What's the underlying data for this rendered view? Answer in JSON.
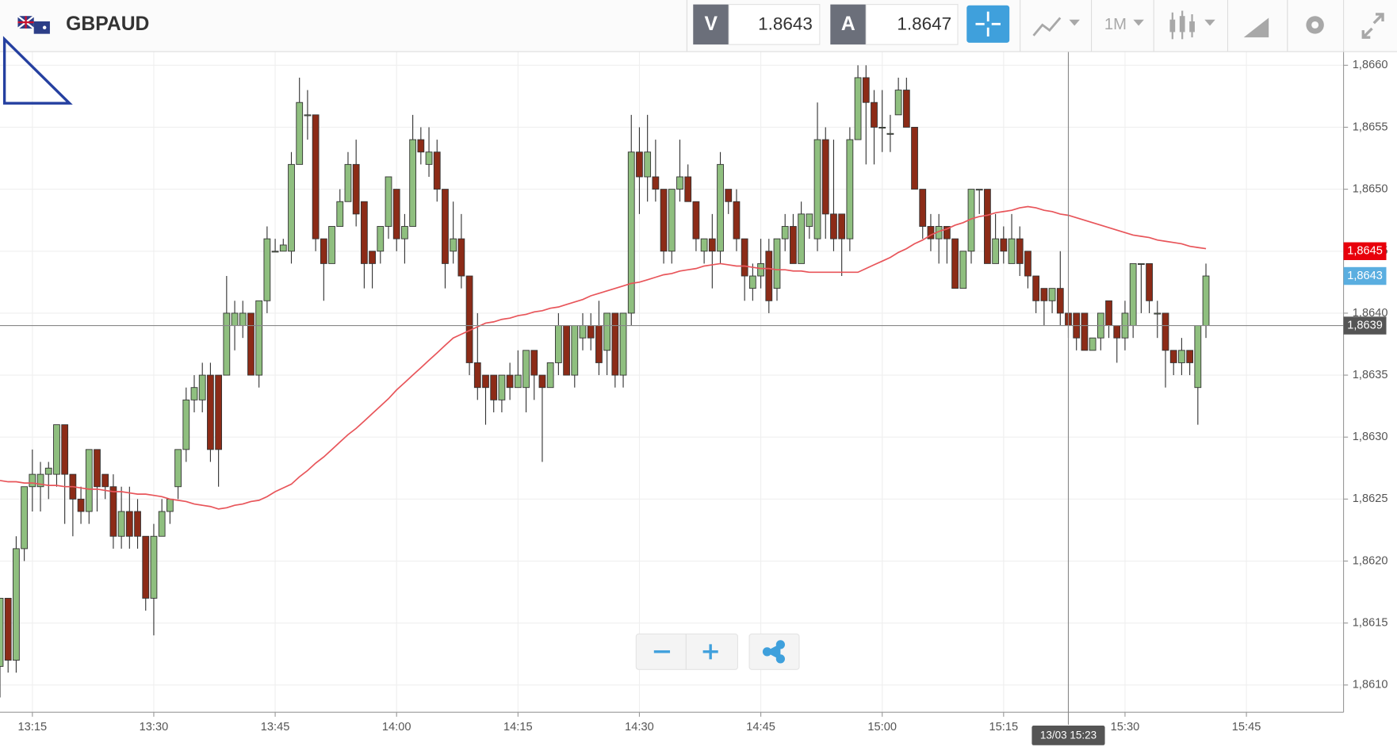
{
  "header": {
    "symbol": "GBPAUD",
    "sell_label": "V",
    "sell_price": 1.8643,
    "buy_label": "A",
    "buy_price": 1.8647,
    "timeframe": "1M"
  },
  "chart_data": {
    "type": "candlestick",
    "up_color": "#8fbf7f",
    "down_color": "#8c2b17",
    "grid": true,
    "xlim": [
      "13:11",
      "15:57"
    ],
    "xticks": [
      "13:15",
      "13:30",
      "13:45",
      "14:00",
      "14:15",
      "14:30",
      "14:45",
      "15:00",
      "15:15",
      "15:30",
      "15:45"
    ],
    "ylim": [
      1.86078,
      1.86611
    ],
    "yticks": [
      {
        "value": 1.861,
        "label": "1,8610"
      },
      {
        "value": 1.8615,
        "label": "1,8615"
      },
      {
        "value": 1.862,
        "label": "1,8620"
      },
      {
        "value": 1.8625,
        "label": "1,8625"
      },
      {
        "value": 1.863,
        "label": "1,8630"
      },
      {
        "value": 1.8635,
        "label": "1,8635"
      },
      {
        "value": 1.864,
        "label": "1,8640"
      },
      {
        "value": 1.8645,
        "label": "1,8645"
      },
      {
        "value": 1.865,
        "label": "1,8650"
      },
      {
        "value": 1.8655,
        "label": "1,8655"
      },
      {
        "value": 1.866,
        "label": "1,8660"
      }
    ],
    "categories": [
      "13:11",
      "13:12",
      "13:13",
      "13:14",
      "13:15",
      "13:16",
      "13:17",
      "13:18",
      "13:19",
      "13:20",
      "13:21",
      "13:22",
      "13:23",
      "13:24",
      "13:25",
      "13:26",
      "13:27",
      "13:28",
      "13:29",
      "13:30",
      "13:31",
      "13:32",
      "13:33",
      "13:34",
      "13:35",
      "13:36",
      "13:37",
      "13:38",
      "13:39",
      "13:40",
      "13:41",
      "13:42",
      "13:43",
      "13:44",
      "13:45",
      "13:46",
      "13:47",
      "13:48",
      "13:49",
      "13:50",
      "13:51",
      "13:52",
      "13:53",
      "13:54",
      "13:55",
      "13:56",
      "13:57",
      "13:58",
      "13:59",
      "14:00",
      "14:01",
      "14:02",
      "14:03",
      "14:04",
      "14:05",
      "14:06",
      "14:07",
      "14:08",
      "14:09",
      "14:10",
      "14:11",
      "14:12",
      "14:13",
      "14:14",
      "14:15",
      "14:16",
      "14:17",
      "14:18",
      "14:19",
      "14:20",
      "14:21",
      "14:22",
      "14:23",
      "14:24",
      "14:25",
      "14:26",
      "14:27",
      "14:28",
      "14:29",
      "14:30",
      "14:31",
      "14:32",
      "14:33",
      "14:34",
      "14:35",
      "14:36",
      "14:37",
      "14:38",
      "14:39",
      "14:40",
      "14:41",
      "14:42",
      "14:43",
      "14:44",
      "14:45",
      "14:46",
      "14:47",
      "14:48",
      "14:49",
      "14:50",
      "14:51",
      "14:52",
      "14:53",
      "14:54",
      "14:55",
      "14:56",
      "14:57",
      "14:58",
      "14:59",
      "15:00",
      "15:01",
      "15:02",
      "15:03",
      "15:04",
      "15:05",
      "15:06",
      "15:07",
      "15:08",
      "15:09",
      "15:10",
      "15:11",
      "15:12",
      "15:13",
      "15:14",
      "15:15",
      "15:16",
      "15:17",
      "15:18",
      "15:19",
      "15:20",
      "15:21",
      "15:22",
      "15:23",
      "15:24",
      "15:25",
      "15:26",
      "15:27",
      "15:28",
      "15:29",
      "15:30",
      "15:31",
      "15:32",
      "15:33",
      "15:34",
      "15:35",
      "15:36",
      "15:37",
      "15:38",
      "15:39",
      "15:40"
    ],
    "ohlc": [
      [
        1.86115,
        1.8617,
        1.8609,
        1.8617
      ],
      [
        1.8617,
        1.8617,
        1.8611,
        1.8612
      ],
      [
        1.8612,
        1.8622,
        1.8611,
        1.8621
      ],
      [
        1.8621,
        1.8626,
        1.862,
        1.8626
      ],
      [
        1.8626,
        1.8629,
        1.8624,
        1.8627
      ],
      [
        1.8626,
        1.8628,
        1.8624,
        1.8627
      ],
      [
        1.8627,
        1.8628,
        1.8625,
        1.86275
      ],
      [
        1.8627,
        1.8631,
        1.8626,
        1.8631
      ],
      [
        1.8631,
        1.8631,
        1.8623,
        1.8627
      ],
      [
        1.8627,
        1.8627,
        1.8622,
        1.8625
      ],
      [
        1.8625,
        1.8626,
        1.8623,
        1.8624
      ],
      [
        1.8624,
        1.8629,
        1.8623,
        1.8629
      ],
      [
        1.8629,
        1.8629,
        1.8624,
        1.8626
      ],
      [
        1.8627,
        1.8627,
        1.8625,
        1.8626
      ],
      [
        1.8626,
        1.8627,
        1.8621,
        1.8622
      ],
      [
        1.8622,
        1.8626,
        1.8621,
        1.8624
      ],
      [
        1.8624,
        1.8626,
        1.8621,
        1.8622
      ],
      [
        1.8624,
        1.8625,
        1.8621,
        1.8622
      ],
      [
        1.8622,
        1.8622,
        1.8616,
        1.8617
      ],
      [
        1.8617,
        1.8623,
        1.8614,
        1.8622
      ],
      [
        1.8622,
        1.8625,
        1.8622,
        1.8624
      ],
      [
        1.8624,
        1.8625,
        1.8623,
        1.8625
      ],
      [
        1.8626,
        1.8629,
        1.8625,
        1.8629
      ],
      [
        1.8629,
        1.8634,
        1.8628,
        1.8633
      ],
      [
        1.8633,
        1.8635,
        1.8632,
        1.8634
      ],
      [
        1.8633,
        1.8636,
        1.8632,
        1.8635
      ],
      [
        1.8635,
        1.8636,
        1.8628,
        1.8629
      ],
      [
        1.8635,
        1.8635,
        1.8626,
        1.8629
      ],
      [
        1.8635,
        1.8643,
        1.8635,
        1.864
      ],
      [
        1.8639,
        1.8641,
        1.8637,
        1.864
      ],
      [
        1.8639,
        1.8641,
        1.8638,
        1.864
      ],
      [
        1.864,
        1.864,
        1.8635,
        1.8635
      ],
      [
        1.8635,
        1.8641,
        1.8634,
        1.8641
      ],
      [
        1.8641,
        1.8647,
        1.864,
        1.8646
      ],
      [
        1.8645,
        1.8646,
        1.8645,
        1.8645
      ],
      [
        1.8645,
        1.8646,
        1.8645,
        1.86455
      ],
      [
        1.8645,
        1.8653,
        1.8644,
        1.8652
      ],
      [
        1.8652,
        1.8659,
        1.8652,
        1.8657
      ],
      [
        1.8656,
        1.8658,
        1.8654,
        1.8656
      ],
      [
        1.8656,
        1.8656,
        1.8645,
        1.8646
      ],
      [
        1.8646,
        1.8646,
        1.8641,
        1.8644
      ],
      [
        1.8644,
        1.8647,
        1.8644,
        1.8647
      ],
      [
        1.8647,
        1.865,
        1.8647,
        1.8649
      ],
      [
        1.8649,
        1.8653,
        1.8649,
        1.8652
      ],
      [
        1.8652,
        1.8654,
        1.8647,
        1.8648
      ],
      [
        1.8649,
        1.8649,
        1.8642,
        1.8644
      ],
      [
        1.8645,
        1.8645,
        1.8642,
        1.8644
      ],
      [
        1.8645,
        1.8647,
        1.8644,
        1.8647
      ],
      [
        1.8647,
        1.8651,
        1.8646,
        1.8651
      ],
      [
        1.865,
        1.865,
        1.8645,
        1.8646
      ],
      [
        1.8646,
        1.8648,
        1.8644,
        1.8647
      ],
      [
        1.8647,
        1.8656,
        1.8647,
        1.8654
      ],
      [
        1.8654,
        1.8655,
        1.8652,
        1.8653
      ],
      [
        1.8652,
        1.8655,
        1.8651,
        1.8653
      ],
      [
        1.8653,
        1.8654,
        1.8649,
        1.865
      ],
      [
        1.865,
        1.865,
        1.8642,
        1.8644
      ],
      [
        1.8645,
        1.8649,
        1.8644,
        1.8646
      ],
      [
        1.8646,
        1.8648,
        1.8642,
        1.8643
      ],
      [
        1.8643,
        1.8643,
        1.8635,
        1.8636
      ],
      [
        1.8636,
        1.864,
        1.8633,
        1.8634
      ],
      [
        1.8635,
        1.8635,
        1.8631,
        1.8634
      ],
      [
        1.8635,
        1.8635,
        1.8632,
        1.8633
      ],
      [
        1.8633,
        1.8635,
        1.8632,
        1.8635
      ],
      [
        1.8635,
        1.8636,
        1.8633,
        1.8634
      ],
      [
        1.8634,
        1.8637,
        1.8634,
        1.8635
      ],
      [
        1.8634,
        1.8637,
        1.8632,
        1.8637
      ],
      [
        1.8637,
        1.8637,
        1.8633,
        1.8635
      ],
      [
        1.8635,
        1.8635,
        1.8628,
        1.8634
      ],
      [
        1.8634,
        1.8636,
        1.8634,
        1.8636
      ],
      [
        1.8636,
        1.864,
        1.8635,
        1.8639
      ],
      [
        1.8639,
        1.8639,
        1.8635,
        1.8635
      ],
      [
        1.8635,
        1.8639,
        1.8634,
        1.8639
      ],
      [
        1.8638,
        1.864,
        1.8637,
        1.8639
      ],
      [
        1.8639,
        1.864,
        1.8637,
        1.8638
      ],
      [
        1.8639,
        1.8641,
        1.8635,
        1.8636
      ],
      [
        1.8637,
        1.864,
        1.8635,
        1.864
      ],
      [
        1.864,
        1.864,
        1.8634,
        1.8635
      ],
      [
        1.8635,
        1.864,
        1.8634,
        1.864
      ],
      [
        1.864,
        1.8656,
        1.8639,
        1.8653
      ],
      [
        1.8653,
        1.8655,
        1.8648,
        1.8651
      ],
      [
        1.8651,
        1.8656,
        1.8649,
        1.8653
      ],
      [
        1.8651,
        1.8654,
        1.8649,
        1.865
      ],
      [
        1.865,
        1.865,
        1.8644,
        1.8645
      ],
      [
        1.8645,
        1.865,
        1.8644,
        1.865
      ],
      [
        1.865,
        1.8654,
        1.8649,
        1.8651
      ],
      [
        1.8651,
        1.8652,
        1.8649,
        1.8649
      ],
      [
        1.8649,
        1.8649,
        1.8645,
        1.8646
      ],
      [
        1.8645,
        1.8646,
        1.8644,
        1.8646
      ],
      [
        1.8646,
        1.8648,
        1.8642,
        1.8645
      ],
      [
        1.8645,
        1.8653,
        1.8644,
        1.8652
      ],
      [
        1.865,
        1.865,
        1.8648,
        1.8649
      ],
      [
        1.8649,
        1.865,
        1.8645,
        1.8646
      ],
      [
        1.8646,
        1.8646,
        1.8641,
        1.8643
      ],
      [
        1.8642,
        1.8644,
        1.8641,
        1.8643
      ],
      [
        1.8643,
        1.8646,
        1.8642,
        1.8644
      ],
      [
        1.8645,
        1.8646,
        1.864,
        1.8641
      ],
      [
        1.8642,
        1.8646,
        1.8641,
        1.8646
      ],
      [
        1.8646,
        1.8648,
        1.8645,
        1.8647
      ],
      [
        1.8647,
        1.8648,
        1.8644,
        1.8644
      ],
      [
        1.8644,
        1.8649,
        1.8644,
        1.8648
      ],
      [
        1.8647,
        1.8648,
        1.8646,
        1.8648
      ],
      [
        1.8646,
        1.8657,
        1.8645,
        1.8654
      ],
      [
        1.8654,
        1.8655,
        1.8646,
        1.8648
      ],
      [
        1.8648,
        1.8654,
        1.8645,
        1.8646
      ],
      [
        1.8648,
        1.8648,
        1.8643,
        1.8646
      ],
      [
        1.8646,
        1.8655,
        1.8645,
        1.8654
      ],
      [
        1.8654,
        1.866,
        1.8654,
        1.8659
      ],
      [
        1.8659,
        1.866,
        1.8652,
        1.8657
      ],
      [
        1.8657,
        1.8658,
        1.8652,
        1.8655
      ],
      [
        1.8655,
        1.8658,
        1.8653,
        1.8655
      ],
      [
        1.86545,
        1.8656,
        1.8653,
        1.86545
      ],
      [
        1.8656,
        1.8659,
        1.8656,
        1.8658
      ],
      [
        1.8658,
        1.8659,
        1.8655,
        1.8655
      ],
      [
        1.8655,
        1.8655,
        1.865,
        1.865
      ],
      [
        1.865,
        1.865,
        1.8646,
        1.8647
      ],
      [
        1.8647,
        1.8648,
        1.8645,
        1.8646
      ],
      [
        1.8646,
        1.8648,
        1.8644,
        1.8647
      ],
      [
        1.8647,
        1.8647,
        1.8644,
        1.8646
      ],
      [
        1.8646,
        1.8646,
        1.8642,
        1.8642
      ],
      [
        1.8642,
        1.8645,
        1.8642,
        1.8645
      ],
      [
        1.8645,
        1.865,
        1.8644,
        1.865
      ],
      [
        1.865,
        1.865,
        1.8648,
        1.865
      ],
      [
        1.865,
        1.865,
        1.8644,
        1.8644
      ],
      [
        1.8644,
        1.8648,
        1.8644,
        1.8646
      ],
      [
        1.8646,
        1.8647,
        1.8644,
        1.8645
      ],
      [
        1.8644,
        1.8648,
        1.8644,
        1.8646
      ],
      [
        1.8646,
        1.8647,
        1.8643,
        1.8644
      ],
      [
        1.8645,
        1.8645,
        1.8642,
        1.8643
      ],
      [
        1.8643,
        1.8643,
        1.864,
        1.8641
      ],
      [
        1.8642,
        1.8642,
        1.8639,
        1.8641
      ],
      [
        1.8641,
        1.8642,
        1.864,
        1.8642
      ],
      [
        1.8642,
        1.8645,
        1.8639,
        1.864
      ],
      [
        1.864,
        1.864,
        1.8638,
        1.8639
      ],
      [
        1.864,
        1.864,
        1.8637,
        1.8638
      ],
      [
        1.864,
        1.864,
        1.8637,
        1.8637
      ],
      [
        1.8637,
        1.8638,
        1.8637,
        1.8638
      ],
      [
        1.8638,
        1.864,
        1.8637,
        1.864
      ],
      [
        1.8641,
        1.8641,
        1.8638,
        1.8639
      ],
      [
        1.8639,
        1.8639,
        1.8636,
        1.8638
      ],
      [
        1.8638,
        1.8641,
        1.8637,
        1.864
      ],
      [
        1.8639,
        1.8644,
        1.8638,
        1.8644
      ],
      [
        1.8644,
        1.8644,
        1.864,
        1.8644
      ],
      [
        1.8644,
        1.8644,
        1.864,
        1.8641
      ],
      [
        1.864,
        1.8641,
        1.8638,
        1.864
      ],
      [
        1.864,
        1.864,
        1.8634,
        1.8637
      ],
      [
        1.8637,
        1.8637,
        1.8635,
        1.8636
      ],
      [
        1.8636,
        1.8638,
        1.8635,
        1.8637
      ],
      [
        1.8637,
        1.8637,
        1.8635,
        1.8636
      ],
      [
        1.8634,
        1.8639,
        1.8631,
        1.8639
      ],
      [
        1.8639,
        1.8644,
        1.8638,
        1.8643
      ]
    ],
    "ma": {
      "color": "#e8555a",
      "values": [
        1.86265,
        1.86264,
        1.86264,
        1.86263,
        1.86263,
        1.86262,
        1.86261,
        1.86261,
        1.8626,
        1.8626,
        1.86259,
        1.86258,
        1.86258,
        1.86257,
        1.86256,
        1.86256,
        1.86255,
        1.86254,
        1.86254,
        1.86253,
        1.86252,
        1.8625,
        1.86249,
        1.86248,
        1.86246,
        1.86245,
        1.86244,
        1.86242,
        1.86243,
        1.86245,
        1.86246,
        1.86248,
        1.86249,
        1.86252,
        1.86256,
        1.86259,
        1.86262,
        1.86268,
        1.86273,
        1.86279,
        1.86284,
        1.8629,
        1.86296,
        1.86302,
        1.86307,
        1.86313,
        1.86319,
        1.86325,
        1.86331,
        1.86338,
        1.86344,
        1.8635,
        1.86356,
        1.86362,
        1.86368,
        1.86374,
        1.8638,
        1.86383,
        1.86386,
        1.86389,
        1.86392,
        1.86393,
        1.86395,
        1.86396,
        1.86398,
        1.86399,
        1.86401,
        1.86402,
        1.86404,
        1.86405,
        1.86407,
        1.86409,
        1.86411,
        1.86414,
        1.86416,
        1.86418,
        1.8642,
        1.86422,
        1.86424,
        1.86425,
        1.86427,
        1.86429,
        1.86431,
        1.86432,
        1.86434,
        1.86435,
        1.86436,
        1.86438,
        1.86439,
        1.8644,
        1.86439,
        1.86438,
        1.86438,
        1.86437,
        1.86436,
        1.86436,
        1.86435,
        1.86435,
        1.86434,
        1.86434,
        1.86433,
        1.86433,
        1.86433,
        1.86433,
        1.86433,
        1.86433,
        1.86433,
        1.86436,
        1.86439,
        1.86442,
        1.86445,
        1.86449,
        1.86452,
        1.86456,
        1.86459,
        1.86463,
        1.86466,
        1.86468,
        1.86471,
        1.86473,
        1.86476,
        1.86478,
        1.86479,
        1.86481,
        1.86482,
        1.86483,
        1.86485,
        1.86486,
        1.86485,
        1.86483,
        1.86482,
        1.8648,
        1.86479,
        1.86477,
        1.86475,
        1.86473,
        1.86471,
        1.86469,
        1.86467,
        1.86465,
        1.86463,
        1.86462,
        1.86461,
        1.86459,
        1.86458,
        1.86457,
        1.86456,
        1.86454,
        1.86453,
        1.86452
      ]
    },
    "price_labels": [
      {
        "value": 1.8645,
        "label": "1,8645",
        "color": "#e8000b"
      },
      {
        "value": 1.8643,
        "label": "1,8643",
        "color": "#5aaee0"
      }
    ],
    "crosshair": {
      "label": "13/03 15:23",
      "price": {
        "value": 1.8639,
        "label": "1,8639"
      },
      "color": "#555555"
    }
  }
}
